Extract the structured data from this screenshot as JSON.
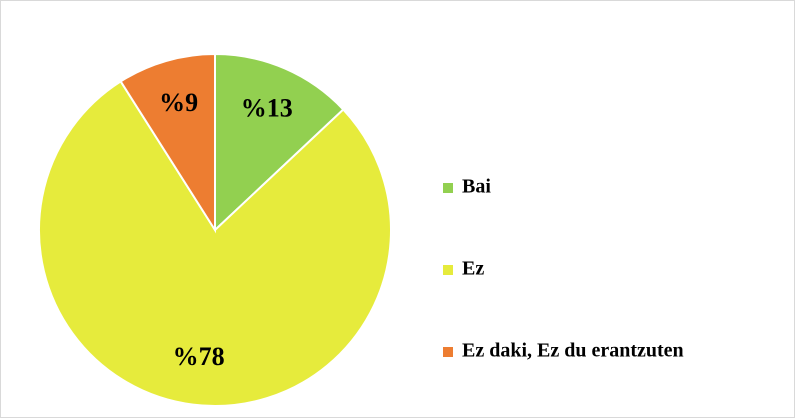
{
  "chart_data": {
    "type": "pie",
    "categories": [
      "Bai",
      "Ez",
      "Ez daki, Ez du erantzuten"
    ],
    "values": [
      13,
      78,
      9
    ],
    "value_labels": [
      "%13",
      "%78",
      "%9"
    ],
    "colors": [
      "#92d050",
      "#e6eb3c",
      "#ed7d31"
    ],
    "legend": "right"
  }
}
